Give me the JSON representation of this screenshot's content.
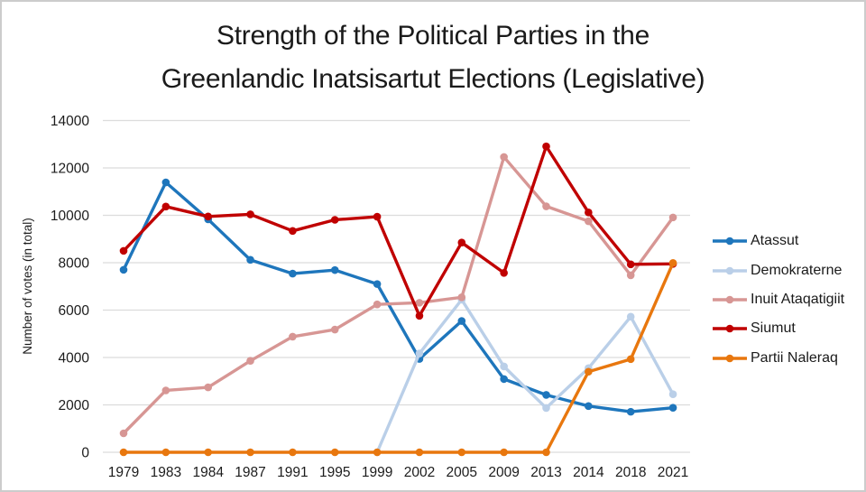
{
  "title": {
    "line1": "Strength of the Political Parties in the",
    "line2": "Greenlandic Inatsisartut Elections (Legislative)"
  },
  "colors": {
    "gridline": "#dcdcdc",
    "text": "#1c1c1c",
    "background": "#ffffff",
    "border": "#cccccc"
  },
  "chart_data": {
    "type": "line",
    "title": "Strength of the Political Parties in the Greenlandic Inatsisartut Elections (Legislative)",
    "xlabel": "",
    "ylabel": "Number of votes (in total)",
    "categories": [
      "1979",
      "1983",
      "1984",
      "1987",
      "1991",
      "1995",
      "1999",
      "2002",
      "2005",
      "2009",
      "2013",
      "2014",
      "2018",
      "2021"
    ],
    "ylim": [
      0,
      14000
    ],
    "ytick_step": 2000,
    "yticks": [
      0,
      2000,
      4000,
      6000,
      8000,
      10000,
      12000,
      14000
    ],
    "grid": true,
    "legend_position": "right",
    "marker": "circle",
    "series": [
      {
        "name": "Atassut",
        "color": "#1e76bc",
        "values": [
          7700,
          11390,
          9830,
          8120,
          7540,
          7690,
          7100,
          3940,
          5540,
          3090,
          2420,
          1950,
          1710,
          1880
        ]
      },
      {
        "name": "Demokraterne",
        "color": "#bacfe8",
        "values": [
          null,
          null,
          null,
          null,
          null,
          null,
          0,
          4170,
          6440,
          3620,
          1870,
          3550,
          5720,
          2450
        ]
      },
      {
        "name": "Inuit Ataqatigiit",
        "color": "#d79694",
        "values": [
          800,
          2610,
          2740,
          3860,
          4880,
          5180,
          6240,
          6310,
          6540,
          12460,
          10380,
          9750,
          7470,
          9910
        ]
      },
      {
        "name": "Siumut",
        "color": "#c00000",
        "values": [
          8500,
          10370,
          9950,
          10040,
          9340,
          9810,
          9940,
          5760,
          8850,
          7570,
          12910,
          10120,
          7930,
          7950
        ]
      },
      {
        "name": "Partii Naleraq",
        "color": "#e8770e",
        "values": [
          0,
          0,
          0,
          0,
          0,
          0,
          0,
          0,
          0,
          0,
          0,
          3400,
          3930,
          7990
        ]
      }
    ]
  }
}
